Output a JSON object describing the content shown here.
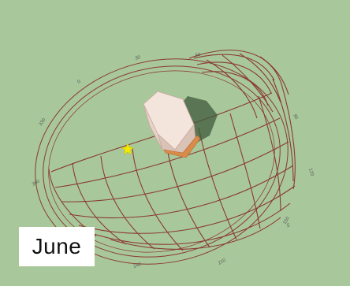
{
  "month": "June",
  "compass_labels": [
    {
      "id": "deg-30",
      "text": "30"
    },
    {
      "id": "deg-60",
      "text": "60"
    },
    {
      "id": "deg-90",
      "text": "90"
    },
    {
      "id": "deg-120",
      "text": "120"
    },
    {
      "id": "deg-150",
      "text": "150"
    },
    {
      "id": "deg-210",
      "text": "210"
    },
    {
      "id": "deg-240",
      "text": "240"
    },
    {
      "id": "deg-300",
      "text": "300"
    },
    {
      "id": "deg-330",
      "text": "330"
    },
    {
      "id": "deg-0",
      "text": "0"
    },
    {
      "id": "deg-5",
      "text": "5"
    }
  ],
  "colors": {
    "ground": "#a9c99a",
    "grid": "#8a3a30",
    "building_light": "#f3e4dc",
    "building_shade": "#d9c2b6",
    "shadow": "#3f5a3c",
    "sun": "#f2e800"
  }
}
